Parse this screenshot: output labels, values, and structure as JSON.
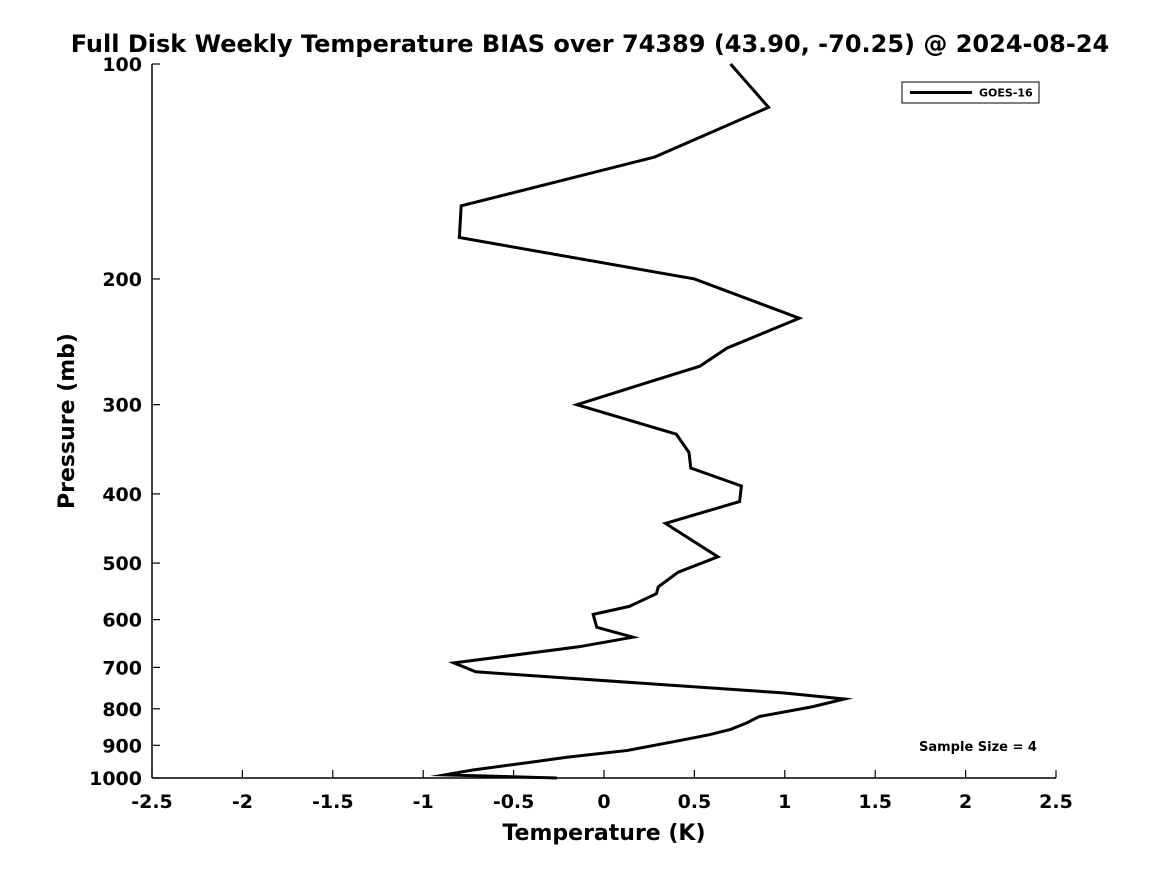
{
  "chart_data": {
    "type": "line",
    "title": "Full Disk Weekly Temperature BIAS over 74389 (43.90, -70.25) @ 2024-08-24",
    "xlabel": "Temperature (K)",
    "ylabel": "Pressure (mb)",
    "xlim": [
      -2.5,
      2.5
    ],
    "ylim": [
      1000,
      100
    ],
    "y_scale": "log",
    "y_reversed": true,
    "grid": false,
    "legend_position": "top-right",
    "x_ticks": [
      "-2.5",
      "-2",
      "-1.5",
      "-1",
      "-0.5",
      "0",
      "0.5",
      "1",
      "1.5",
      "2",
      "2.5"
    ],
    "x_tick_values": [
      -2.5,
      -2,
      -1.5,
      -1,
      -0.5,
      0,
      0.5,
      1,
      1.5,
      2,
      2.5
    ],
    "y_ticks": [
      "100",
      "200",
      "300",
      "400",
      "500",
      "600",
      "700",
      "800",
      "900",
      "1000"
    ],
    "y_tick_values": [
      100,
      200,
      300,
      400,
      500,
      600,
      700,
      800,
      900,
      1000
    ],
    "series": [
      {
        "name": "GOES-16",
        "color": "#000000",
        "points": [
          [
            0.7,
            100
          ],
          [
            0.91,
            115
          ],
          [
            0.28,
            135
          ],
          [
            -0.79,
            158
          ],
          [
            -0.8,
            175
          ],
          [
            0.5,
            200
          ],
          [
            1.08,
            227
          ],
          [
            0.68,
            250
          ],
          [
            0.53,
            265
          ],
          [
            0.13,
            285
          ],
          [
            -0.15,
            300
          ],
          [
            0.4,
            330
          ],
          [
            0.47,
            350
          ],
          [
            0.48,
            368
          ],
          [
            0.76,
            390
          ],
          [
            0.75,
            410
          ],
          [
            0.34,
            440
          ],
          [
            0.63,
            490
          ],
          [
            0.41,
            515
          ],
          [
            0.3,
            540
          ],
          [
            0.29,
            552
          ],
          [
            0.14,
            575
          ],
          [
            -0.06,
            590
          ],
          [
            -0.04,
            615
          ],
          [
            0.16,
            635
          ],
          [
            -0.14,
            655
          ],
          [
            -0.83,
            690
          ],
          [
            -0.71,
            710
          ],
          [
            0.99,
            760
          ],
          [
            1.33,
            775
          ],
          [
            1.15,
            795
          ],
          [
            0.86,
            820
          ],
          [
            0.79,
            837
          ],
          [
            0.7,
            855
          ],
          [
            0.58,
            870
          ],
          [
            0.4,
            888
          ],
          [
            0.13,
            915
          ],
          [
            -0.2,
            935
          ],
          [
            -0.4,
            950
          ],
          [
            -0.73,
            975
          ],
          [
            -0.88,
            990
          ],
          [
            -0.26,
            1000
          ]
        ]
      }
    ],
    "annotation": "Sample Size = 4"
  }
}
